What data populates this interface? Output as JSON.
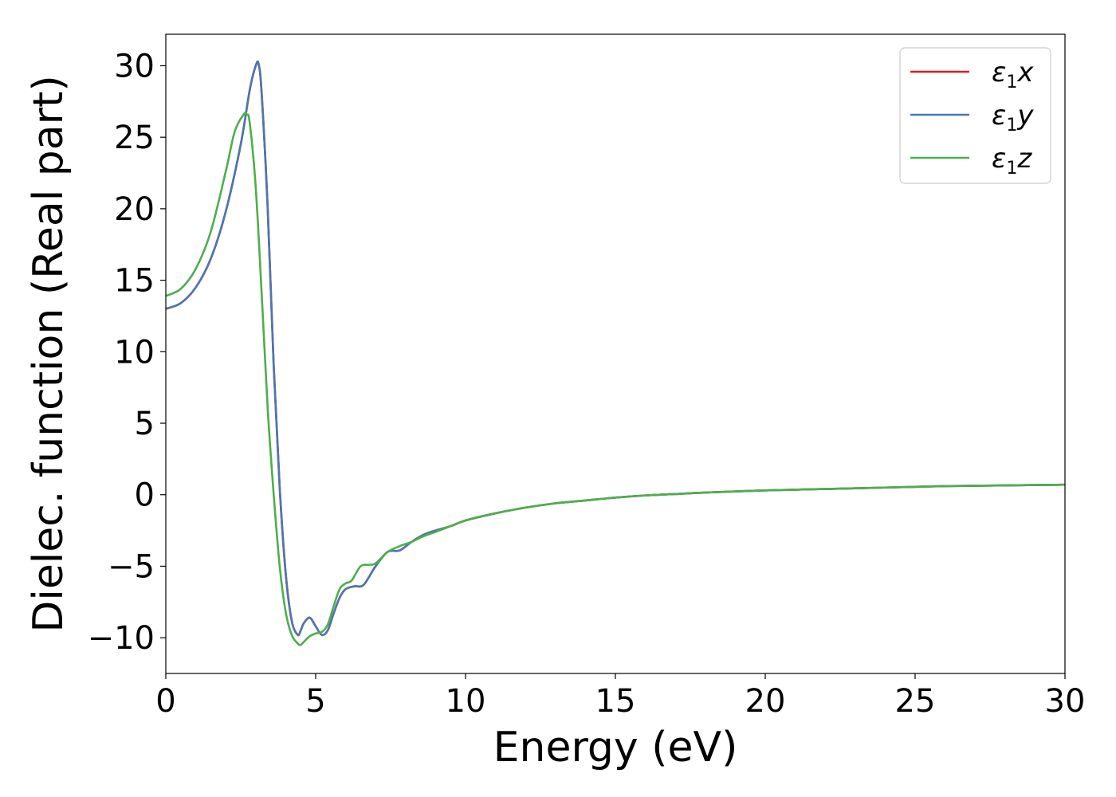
{
  "chart_data": {
    "type": "line",
    "xlabel": "Energy (eV)",
    "ylabel": "Dielec. function (Real part)",
    "xlim": [
      0,
      30
    ],
    "ylim": [
      -12.5,
      32.2
    ],
    "xticks": [
      "0",
      "5",
      "10",
      "15",
      "20",
      "25",
      "30"
    ],
    "yticks": [
      "30",
      "25",
      "20",
      "15",
      "10",
      "5",
      "0",
      "−5",
      "−10"
    ],
    "xtick_values": [
      0,
      5,
      10,
      15,
      20,
      25,
      30
    ],
    "ytick_values": [
      30,
      25,
      20,
      15,
      10,
      5,
      0,
      -5,
      -10
    ],
    "grid": false,
    "legend_position": "top-right",
    "series": [
      {
        "name": "ε1x",
        "label_main": "ε",
        "label_sub": "1",
        "label_var": "x",
        "color": "#e41a1c",
        "x": [
          0,
          0.5,
          1.0,
          1.5,
          2.0,
          2.5,
          2.8,
          3.0,
          3.1,
          3.2,
          3.4,
          3.6,
          3.8,
          4.0,
          4.2,
          4.4,
          4.5,
          4.6,
          4.8,
          5.0,
          5.2,
          5.4,
          5.6,
          5.8,
          6.0,
          6.3,
          6.6,
          7.0,
          7.4,
          7.8,
          8.2,
          8.6,
          9.0,
          9.5,
          10,
          11,
          12,
          13,
          14,
          15,
          16,
          17,
          18,
          20,
          22,
          24,
          26,
          28,
          30
        ],
        "y": [
          13.0,
          13.4,
          14.5,
          16.5,
          19.8,
          24.5,
          28.3,
          30.0,
          30.1,
          28.0,
          20.0,
          9.0,
          0.5,
          -5.5,
          -8.8,
          -9.8,
          -9.5,
          -9.0,
          -8.6,
          -9.2,
          -9.8,
          -9.5,
          -8.3,
          -7.2,
          -6.6,
          -6.4,
          -6.3,
          -5.0,
          -4.0,
          -3.9,
          -3.3,
          -2.8,
          -2.5,
          -2.2,
          -1.8,
          -1.3,
          -0.9,
          -0.6,
          -0.4,
          -0.2,
          -0.05,
          0.05,
          0.15,
          0.3,
          0.4,
          0.5,
          0.6,
          0.65,
          0.7
        ]
      },
      {
        "name": "ε1y",
        "label_main": "ε",
        "label_sub": "1",
        "label_var": "y",
        "color": "#4a77b1",
        "x": [
          0,
          0.5,
          1.0,
          1.5,
          2.0,
          2.5,
          2.8,
          3.0,
          3.1,
          3.2,
          3.4,
          3.6,
          3.8,
          4.0,
          4.2,
          4.4,
          4.5,
          4.6,
          4.8,
          5.0,
          5.2,
          5.4,
          5.6,
          5.8,
          6.0,
          6.3,
          6.6,
          7.0,
          7.4,
          7.8,
          8.2,
          8.6,
          9.0,
          9.5,
          10,
          11,
          12,
          13,
          14,
          15,
          16,
          17,
          18,
          20,
          22,
          24,
          26,
          28,
          30
        ],
        "y": [
          13.0,
          13.4,
          14.5,
          16.5,
          19.8,
          24.5,
          28.3,
          30.0,
          30.1,
          28.0,
          20.0,
          9.0,
          0.5,
          -5.5,
          -8.8,
          -9.8,
          -9.5,
          -9.0,
          -8.6,
          -9.2,
          -9.8,
          -9.5,
          -8.3,
          -7.2,
          -6.6,
          -6.4,
          -6.3,
          -5.0,
          -4.0,
          -3.9,
          -3.3,
          -2.8,
          -2.5,
          -2.2,
          -1.8,
          -1.3,
          -0.9,
          -0.6,
          -0.4,
          -0.2,
          -0.05,
          0.05,
          0.15,
          0.3,
          0.4,
          0.5,
          0.6,
          0.65,
          0.7
        ]
      },
      {
        "name": "ε1z",
        "label_main": "ε",
        "label_sub": "1",
        "label_var": "z",
        "color": "#4daf4a",
        "x": [
          0,
          0.5,
          1.0,
          1.5,
          2.0,
          2.3,
          2.6,
          2.7,
          2.8,
          3.0,
          3.2,
          3.4,
          3.6,
          3.8,
          4.0,
          4.2,
          4.4,
          4.5,
          4.6,
          4.8,
          5.0,
          5.2,
          5.4,
          5.6,
          5.8,
          6.0,
          6.2,
          6.5,
          6.8,
          7.0,
          7.4,
          7.8,
          8.2,
          8.6,
          9.0,
          9.5,
          10,
          11,
          12,
          13,
          14,
          15,
          16,
          17,
          18,
          20,
          22,
          24,
          26,
          28,
          30
        ],
        "y": [
          13.9,
          14.4,
          15.8,
          18.4,
          22.6,
          25.4,
          26.6,
          26.6,
          26.0,
          21.5,
          14.0,
          6.0,
          0.0,
          -5.0,
          -8.2,
          -9.8,
          -10.4,
          -10.5,
          -10.3,
          -9.9,
          -9.7,
          -9.6,
          -9.1,
          -7.8,
          -6.6,
          -6.2,
          -6.0,
          -5.0,
          -4.9,
          -4.8,
          -4.0,
          -3.6,
          -3.3,
          -2.9,
          -2.6,
          -2.2,
          -1.8,
          -1.3,
          -0.9,
          -0.6,
          -0.4,
          -0.2,
          -0.05,
          0.05,
          0.15,
          0.3,
          0.4,
          0.5,
          0.6,
          0.65,
          0.7
        ]
      }
    ]
  }
}
